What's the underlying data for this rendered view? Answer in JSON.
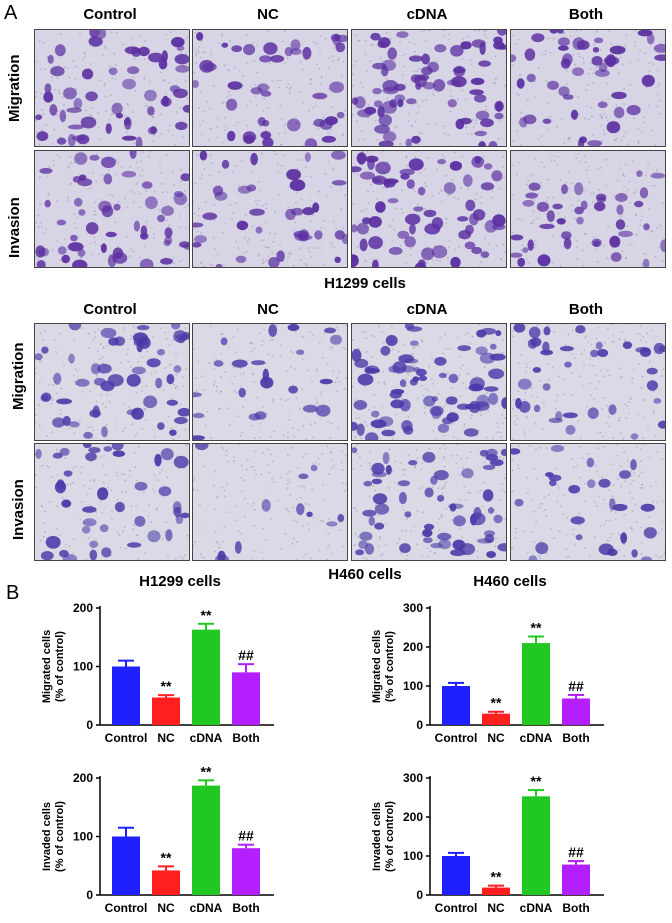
{
  "panel_a": {
    "letter": "A",
    "columns": [
      "Control",
      "NC",
      "cDNA",
      "Both"
    ],
    "rows": [
      "Migration",
      "Invasion"
    ],
    "blocks": [
      {
        "caption": "H1299 cells",
        "density": [
          [
            0.75,
            0.55,
            0.95,
            0.6
          ],
          [
            0.7,
            0.5,
            0.9,
            0.55
          ]
        ],
        "bg": "#d7d4e6",
        "stain": "#5a2ea0"
      },
      {
        "caption": "H460 cells",
        "density": [
          [
            0.7,
            0.3,
            0.95,
            0.5
          ],
          [
            0.55,
            0.15,
            0.8,
            0.35
          ]
        ],
        "bg": "#d9dae6",
        "stain": "#4a3aa8"
      }
    ]
  },
  "panel_b": {
    "letter": "B",
    "colors": [
      "#1f1fff",
      "#ff1f1f",
      "#22c822",
      "#b41fff"
    ]
  },
  "chart_data": [
    {
      "type": "bar",
      "title": "H1299 cells",
      "ylabel": "Migrated cells\n(% of control)",
      "categories": [
        "Control",
        "NC",
        "cDNA",
        "Both"
      ],
      "values": [
        100,
        47,
        163,
        90
      ],
      "errors": [
        10,
        4,
        10,
        14
      ],
      "annotations": [
        "",
        "**",
        "**",
        "##"
      ],
      "ylim": [
        0,
        200
      ],
      "yticks": [
        0,
        100,
        200
      ]
    },
    {
      "type": "bar",
      "title": "H460 cells",
      "ylabel": "Migrated cells\n(% of control)",
      "categories": [
        "Control",
        "NC",
        "cDNA",
        "Both"
      ],
      "values": [
        100,
        29,
        210,
        68
      ],
      "errors": [
        8,
        5,
        17,
        9
      ],
      "annotations": [
        "",
        "**",
        "**",
        "##"
      ],
      "ylim": [
        0,
        300
      ],
      "yticks": [
        0,
        100,
        200,
        300
      ]
    },
    {
      "type": "bar",
      "title": "",
      "ylabel": "Invaded cells\n(% of control)",
      "categories": [
        "Control",
        "NC",
        "cDNA",
        "Both"
      ],
      "values": [
        100,
        42,
        187,
        80
      ],
      "errors": [
        15,
        7,
        9,
        6
      ],
      "annotations": [
        "",
        "**",
        "**",
        "##"
      ],
      "ylim": [
        0,
        200
      ],
      "yticks": [
        0,
        100,
        200
      ]
    },
    {
      "type": "bar",
      "title": "",
      "ylabel": "Invaded cells\n(% of control)",
      "categories": [
        "Control",
        "NC",
        "cDNA",
        "Both"
      ],
      "values": [
        100,
        19,
        253,
        78
      ],
      "errors": [
        8,
        5,
        16,
        9
      ],
      "annotations": [
        "",
        "**",
        "**",
        "##"
      ],
      "ylim": [
        0,
        300
      ],
      "yticks": [
        0,
        100,
        200,
        300
      ]
    }
  ]
}
